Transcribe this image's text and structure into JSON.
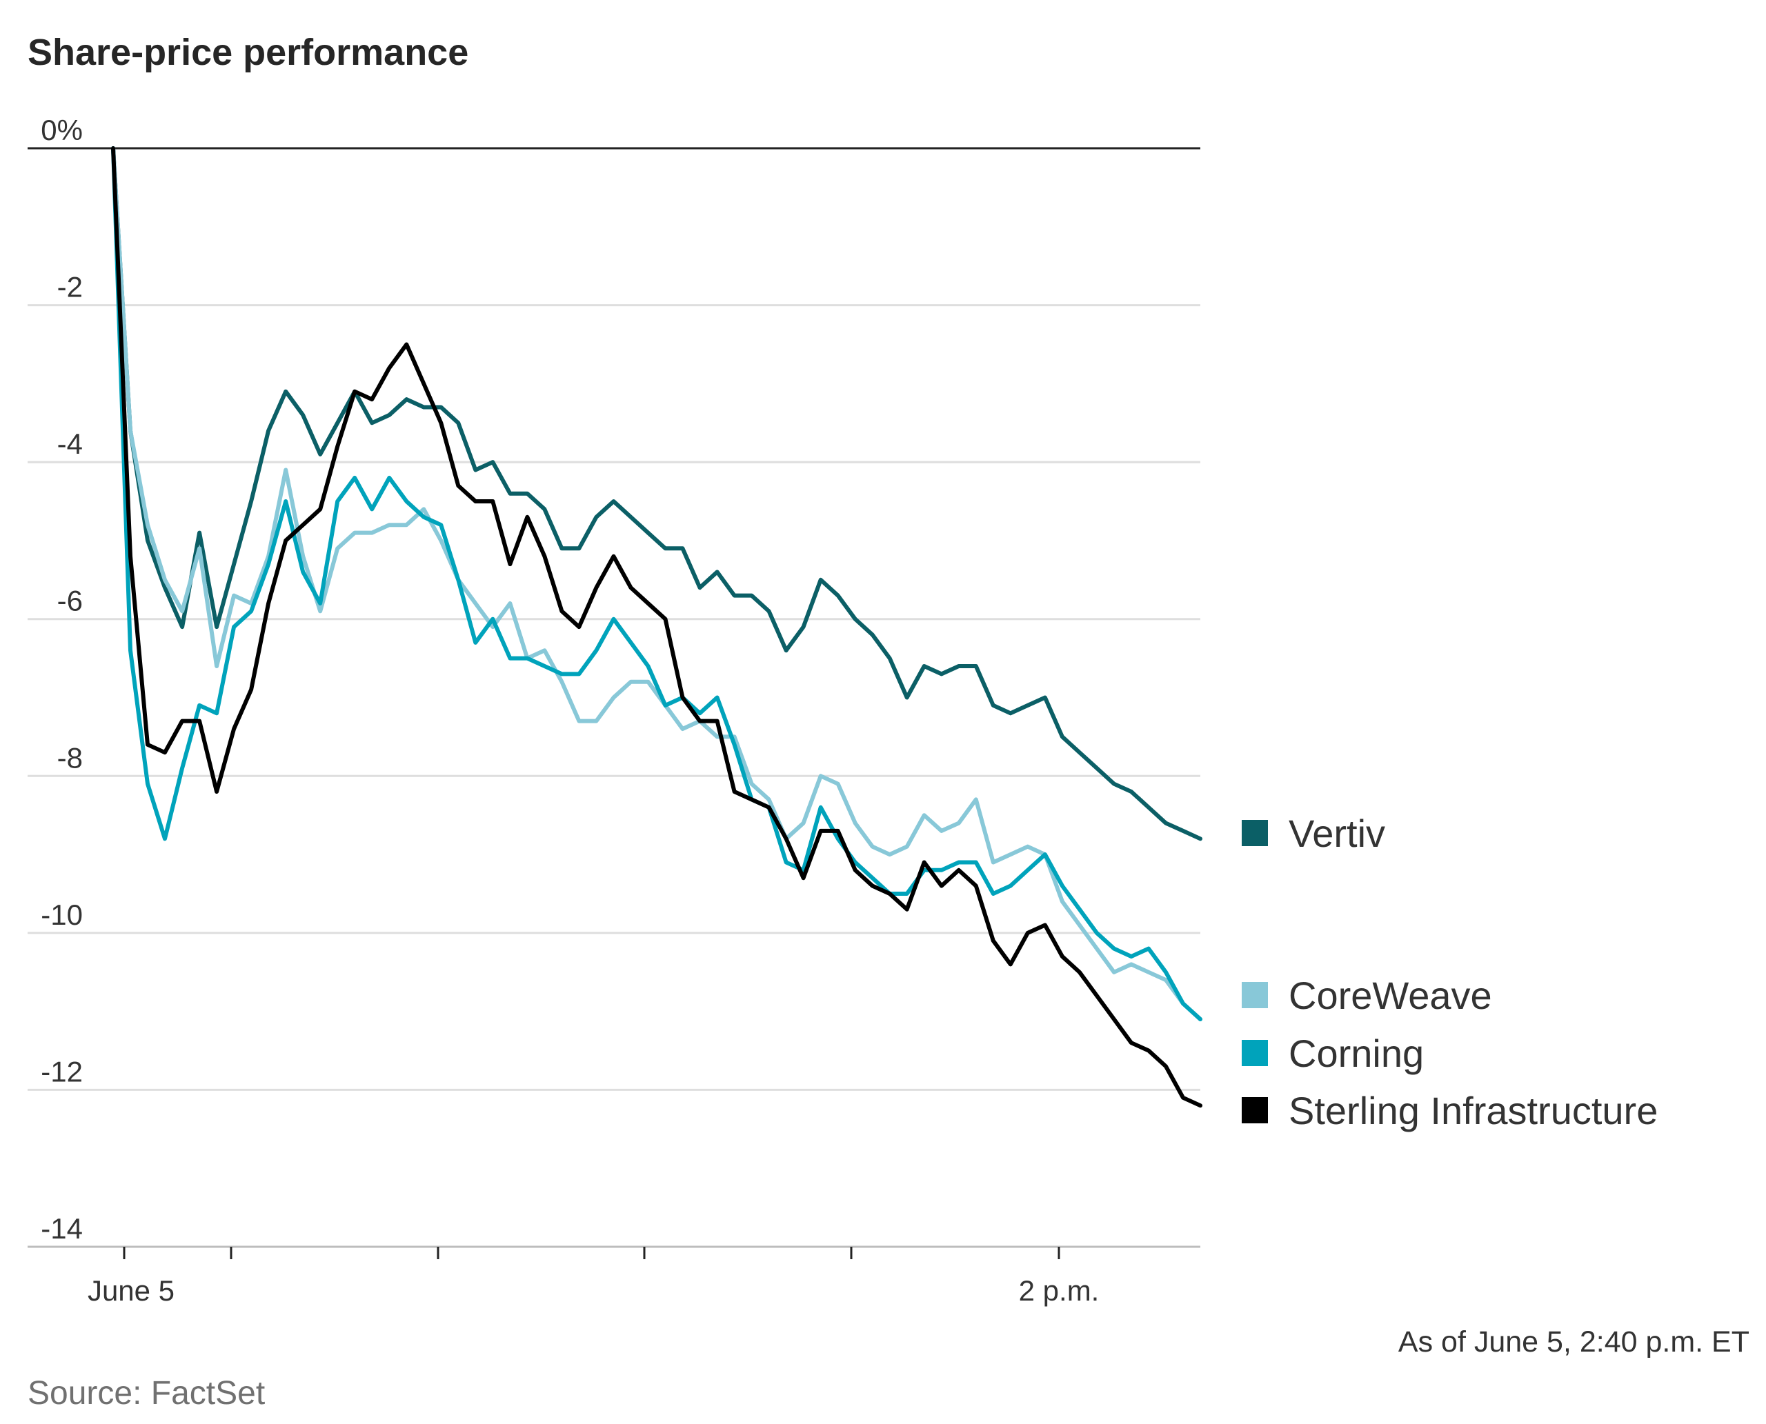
{
  "chart_data": {
    "type": "line",
    "title": "Share-price performance",
    "y_unit": "%",
    "ylim": [
      -14,
      0
    ],
    "yticks": [
      0,
      -2,
      -4,
      -6,
      -8,
      -10,
      -12,
      -14
    ],
    "ytick_labels": [
      "0%",
      "-2",
      "-4",
      "-6",
      "-8",
      "-10",
      "-12",
      "-14"
    ],
    "x_tick_labels": [
      "June 5",
      "2 p.m."
    ],
    "grid": true,
    "legend_position": "right",
    "x": [
      0,
      1,
      2,
      3,
      4,
      5,
      6,
      7,
      8,
      9,
      10,
      11,
      12,
      13,
      14,
      15,
      16,
      17,
      18,
      19,
      20,
      21,
      22,
      23,
      24,
      25,
      26,
      27,
      28,
      29,
      30,
      31,
      32,
      33,
      34,
      35,
      36,
      37,
      38,
      39,
      40,
      41,
      42,
      43,
      44,
      45,
      46,
      47,
      48,
      49,
      50,
      51,
      52,
      53,
      54,
      55,
      56,
      57,
      58,
      59,
      60,
      61,
      62,
      63
    ],
    "series": [
      {
        "name": "Vertiv",
        "color": "#0b5f66",
        "values": [
          0,
          -3.6,
          -5,
          -5.6,
          -6.1,
          -4.9,
          -6.1,
          -5.3,
          -4.5,
          -3.6,
          -3.1,
          -3.4,
          -3.9,
          -3.5,
          -3.1,
          -3.5,
          -3.4,
          -3.2,
          -3.3,
          -3.3,
          -3.5,
          -4.1,
          -4,
          -4.4,
          -4.4,
          -4.6,
          -5.1,
          -5.1,
          -4.7,
          -4.5,
          -4.7,
          -4.9,
          -5.1,
          -5.1,
          -5.6,
          -5.4,
          -5.7,
          -5.7,
          -5.9,
          -6.4,
          -6.1,
          -5.5,
          -5.7,
          -6,
          -6.2,
          -6.5,
          -7,
          -6.6,
          -6.7,
          -6.6,
          -6.6,
          -7.1,
          -7.2,
          -7.1,
          -7,
          -7.5,
          -7.7,
          -7.9,
          -8.1,
          -8.2,
          -8.4,
          -8.6,
          -8.7,
          -8.8
        ]
      },
      {
        "name": "CoreWeave",
        "color": "#88c8d8",
        "values": [
          0,
          -3.6,
          -4.8,
          -5.5,
          -5.9,
          -5.1,
          -6.6,
          -5.7,
          -5.8,
          -5.2,
          -4.1,
          -5.2,
          -5.9,
          -5.1,
          -4.9,
          -4.9,
          -4.8,
          -4.8,
          -4.6,
          -5,
          -5.5,
          -5.8,
          -6.1,
          -5.8,
          -6.5,
          -6.4,
          -6.8,
          -7.3,
          -7.3,
          -7,
          -6.8,
          -6.8,
          -7.1,
          -7.4,
          -7.3,
          -7.5,
          -7.5,
          -8.1,
          -8.3,
          -8.8,
          -8.6,
          -8,
          -8.1,
          -8.6,
          -8.9,
          -9,
          -8.9,
          -8.5,
          -8.7,
          -8.6,
          -8.3,
          -9.1,
          -9,
          -8.9,
          -9,
          -9.6,
          -9.9,
          -10.2,
          -10.5,
          -10.4,
          -10.5,
          -10.6,
          -10.9,
          -11.1
        ]
      },
      {
        "name": "Corning",
        "color": "#00a3bb",
        "values": [
          0,
          -6.4,
          -8.1,
          -8.8,
          -7.9,
          -7.1,
          -7.2,
          -6.1,
          -5.9,
          -5.3,
          -4.5,
          -5.4,
          -5.8,
          -4.5,
          -4.2,
          -4.6,
          -4.2,
          -4.5,
          -4.7,
          -4.8,
          -5.5,
          -6.3,
          -6,
          -6.5,
          -6.5,
          -6.6,
          -6.7,
          -6.7,
          -6.4,
          -6,
          -6.3,
          -6.6,
          -7.1,
          -7,
          -7.2,
          -7,
          -7.6,
          -8.3,
          -8.4,
          -9.1,
          -9.2,
          -8.4,
          -8.8,
          -9.1,
          -9.3,
          -9.5,
          -9.5,
          -9.2,
          -9.2,
          -9.1,
          -9.1,
          -9.5,
          -9.4,
          -9.2,
          -9,
          -9.4,
          -9.7,
          -10,
          -10.2,
          -10.3,
          -10.2,
          -10.5,
          -10.9,
          -11.1
        ]
      },
      {
        "name": "Sterling Infrastructure",
        "color": "#000000",
        "values": [
          0,
          -5.2,
          -7.6,
          -7.7,
          -7.3,
          -7.3,
          -8.2,
          -7.4,
          -6.9,
          -5.8,
          -5,
          -4.8,
          -4.6,
          -3.8,
          -3.1,
          -3.2,
          -2.8,
          -2.5,
          -3,
          -3.5,
          -4.3,
          -4.5,
          -4.5,
          -5.3,
          -4.7,
          -5.2,
          -5.9,
          -6.1,
          -5.6,
          -5.2,
          -5.6,
          -5.8,
          -6,
          -7,
          -7.3,
          -7.3,
          -8.2,
          -8.3,
          -8.4,
          -8.8,
          -9.3,
          -8.7,
          -8.7,
          -9.2,
          -9.4,
          -9.5,
          -9.7,
          -9.1,
          -9.4,
          -9.2,
          -9.4,
          -10.1,
          -10.4,
          -10,
          -9.9,
          -10.3,
          -10.5,
          -10.8,
          -11.1,
          -11.4,
          -11.5,
          -11.7,
          -12.1,
          -12.2
        ]
      }
    ],
    "legend": [
      {
        "name": "Vertiv",
        "color": "#0b5f66"
      },
      {
        "name": "CoreWeave",
        "color": "#88c8d8"
      },
      {
        "name": "Corning",
        "color": "#00a3bb"
      },
      {
        "name": "Sterling Infrastructure",
        "color": "#000000"
      }
    ],
    "note": "As of June 5, 2:40 p.m. ET",
    "source": "Source: FactSet"
  }
}
